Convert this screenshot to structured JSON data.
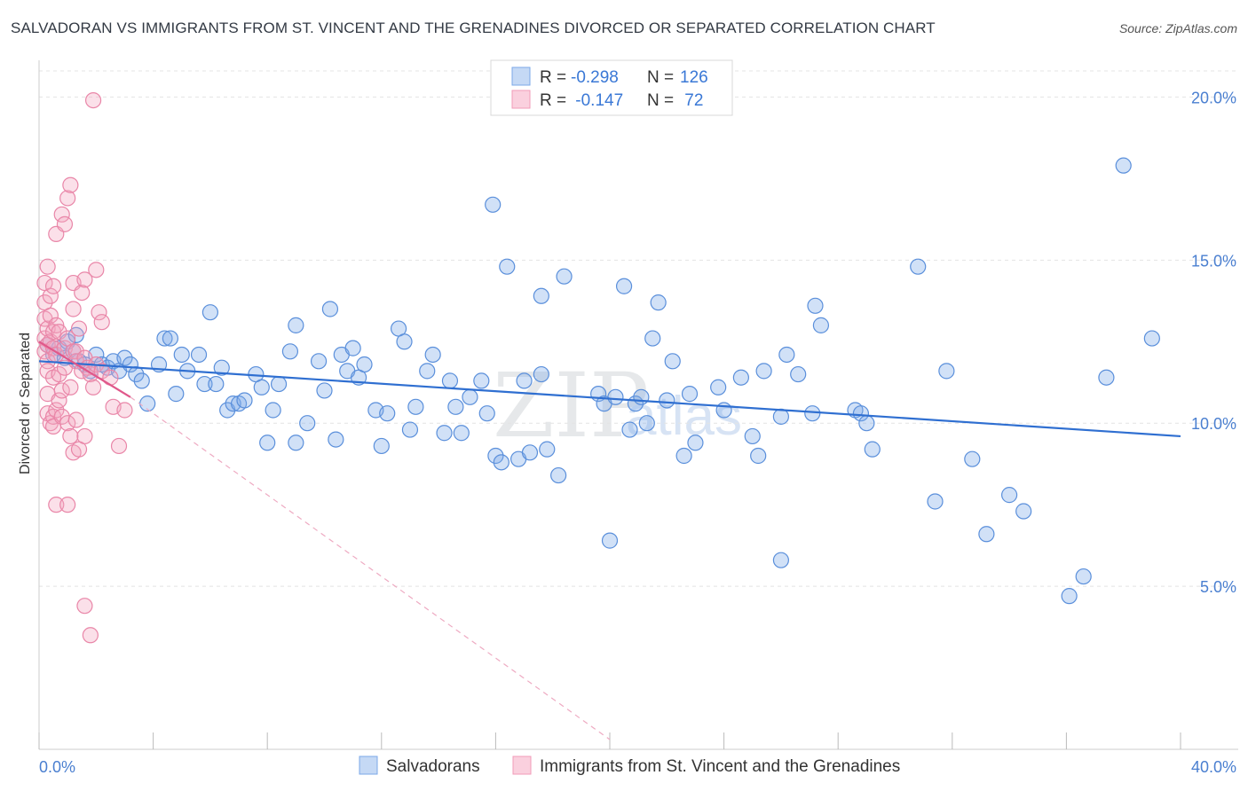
{
  "title": "SALVADORAN VS IMMIGRANTS FROM ST. VINCENT AND THE GRENADINES DIVORCED OR SEPARATED CORRELATION CHART",
  "source": "Source: ZipAtlas.com",
  "watermark": {
    "zip": "ZIP",
    "atlas": "atlas"
  },
  "stats_box": {
    "rows": [
      {
        "r_label": "R = ",
        "r_value": "-0.298",
        "n_label": "N = ",
        "n_value": "126",
        "color": "#7ba8e8"
      },
      {
        "r_label": "R = ",
        "r_value": " -0.147",
        "n_label": "N = ",
        "n_value": " 72",
        "color": "#f29bb8"
      }
    ]
  },
  "chart_data": {
    "type": "scatter",
    "title": "SALVADORAN VS IMMIGRANTS FROM ST. VINCENT AND THE GRENADINES DIVORCED OR SEPARATED CORRELATION CHART",
    "xlabel": "",
    "ylabel": "Divorced or Separated",
    "xlim": [
      0,
      40
    ],
    "ylim": [
      0,
      20.8
    ],
    "x_tick_labels": [
      "0.0%",
      "40.0%"
    ],
    "y_ticks": [
      5,
      10,
      15,
      20
    ],
    "y_tick_labels": [
      "5.0%",
      "10.0%",
      "15.0%",
      "20.0%"
    ],
    "grid": true,
    "legend_position": "bottom",
    "series": [
      {
        "name": "Salvadorans",
        "color": "#7ba8e8",
        "stroke": "#5a8fdb",
        "trend": {
          "x": [
            0,
            40
          ],
          "y": [
            11.9,
            9.6
          ]
        },
        "points": [
          [
            0.3,
            12.4
          ],
          [
            0.5,
            12.1
          ],
          [
            0.7,
            12.3
          ],
          [
            0.9,
            12.0
          ],
          [
            1.0,
            12.5
          ],
          [
            1.2,
            12.2
          ],
          [
            1.3,
            12.7
          ],
          [
            1.4,
            11.9
          ],
          [
            1.6,
            11.8
          ],
          [
            1.8,
            11.6
          ],
          [
            2.0,
            12.1
          ],
          [
            2.2,
            11.8
          ],
          [
            2.4,
            11.7
          ],
          [
            2.6,
            11.9
          ],
          [
            2.8,
            11.6
          ],
          [
            3.0,
            12.0
          ],
          [
            3.2,
            11.8
          ],
          [
            3.4,
            11.5
          ],
          [
            3.6,
            11.3
          ],
          [
            3.8,
            10.6
          ],
          [
            4.2,
            11.8
          ],
          [
            4.4,
            12.6
          ],
          [
            4.6,
            12.6
          ],
          [
            4.8,
            10.9
          ],
          [
            5.0,
            12.1
          ],
          [
            5.2,
            11.6
          ],
          [
            5.6,
            12.1
          ],
          [
            5.8,
            11.2
          ],
          [
            6.0,
            13.4
          ],
          [
            6.2,
            11.2
          ],
          [
            6.4,
            11.7
          ],
          [
            6.6,
            10.4
          ],
          [
            6.8,
            10.6
          ],
          [
            7.0,
            10.6
          ],
          [
            7.2,
            10.7
          ],
          [
            7.6,
            11.5
          ],
          [
            7.8,
            11.1
          ],
          [
            8.0,
            9.4
          ],
          [
            8.2,
            10.4
          ],
          [
            8.4,
            11.2
          ],
          [
            8.8,
            12.2
          ],
          [
            9.0,
            13.0
          ],
          [
            9.0,
            9.4
          ],
          [
            9.4,
            10.0
          ],
          [
            9.8,
            11.9
          ],
          [
            10.0,
            11.0
          ],
          [
            10.2,
            13.5
          ],
          [
            10.4,
            9.5
          ],
          [
            10.6,
            12.1
          ],
          [
            10.8,
            11.6
          ],
          [
            11.0,
            12.3
          ],
          [
            11.2,
            11.4
          ],
          [
            11.4,
            11.8
          ],
          [
            11.8,
            10.4
          ],
          [
            12.0,
            9.3
          ],
          [
            12.2,
            10.3
          ],
          [
            12.6,
            12.9
          ],
          [
            12.8,
            12.5
          ],
          [
            13.0,
            9.8
          ],
          [
            13.2,
            10.5
          ],
          [
            13.6,
            11.6
          ],
          [
            13.8,
            12.1
          ],
          [
            14.2,
            9.7
          ],
          [
            14.4,
            11.3
          ],
          [
            14.6,
            10.5
          ],
          [
            14.8,
            9.7
          ],
          [
            15.1,
            10.8
          ],
          [
            15.5,
            11.3
          ],
          [
            15.7,
            10.3
          ],
          [
            15.9,
            16.7
          ],
          [
            16.0,
            9.0
          ],
          [
            16.2,
            8.8
          ],
          [
            16.4,
            14.8
          ],
          [
            16.8,
            8.9
          ],
          [
            17.0,
            11.3
          ],
          [
            17.2,
            9.1
          ],
          [
            17.6,
            11.5
          ],
          [
            17.6,
            13.9
          ],
          [
            17.8,
            9.2
          ],
          [
            18.2,
            8.4
          ],
          [
            18.4,
            14.5
          ],
          [
            19.6,
            10.9
          ],
          [
            19.8,
            10.6
          ],
          [
            20.0,
            6.4
          ],
          [
            20.2,
            10.8
          ],
          [
            20.5,
            14.2
          ],
          [
            20.7,
            9.8
          ],
          [
            20.9,
            10.6
          ],
          [
            21.1,
            10.8
          ],
          [
            21.3,
            10.0
          ],
          [
            21.5,
            12.6
          ],
          [
            21.7,
            13.7
          ],
          [
            22.0,
            10.7
          ],
          [
            22.2,
            11.9
          ],
          [
            22.6,
            9.0
          ],
          [
            22.8,
            10.9
          ],
          [
            23.0,
            9.4
          ],
          [
            23.8,
            11.1
          ],
          [
            24.0,
            10.4
          ],
          [
            24.6,
            11.4
          ],
          [
            25.0,
            9.6
          ],
          [
            25.2,
            9.0
          ],
          [
            25.4,
            11.6
          ],
          [
            26.0,
            10.2
          ],
          [
            26.0,
            5.8
          ],
          [
            26.2,
            12.1
          ],
          [
            26.6,
            11.5
          ],
          [
            27.1,
            10.3
          ],
          [
            27.2,
            13.6
          ],
          [
            27.4,
            13.0
          ],
          [
            28.6,
            10.4
          ],
          [
            28.8,
            10.3
          ],
          [
            29.0,
            10.0
          ],
          [
            29.2,
            9.2
          ],
          [
            30.8,
            14.8
          ],
          [
            31.4,
            7.6
          ],
          [
            31.8,
            11.6
          ],
          [
            32.7,
            8.9
          ],
          [
            33.2,
            6.6
          ],
          [
            34.0,
            7.8
          ],
          [
            34.5,
            7.3
          ],
          [
            36.1,
            4.7
          ],
          [
            36.6,
            5.3
          ],
          [
            37.4,
            11.4
          ],
          [
            38.0,
            17.9
          ],
          [
            39.0,
            12.6
          ]
        ]
      },
      {
        "name": "Immigrants from St. Vincent and the Grenadines",
        "color": "#f4a7c0",
        "stroke": "#e986a8",
        "trend": {
          "x": [
            0,
            3.2
          ],
          "y": [
            12.5,
            10.8
          ]
        },
        "trend_extension": {
          "x": [
            3.2,
            20.0
          ],
          "y": [
            10.8,
            0.3
          ]
        },
        "points": [
          [
            0.2,
            14.3
          ],
          [
            0.2,
            13.7
          ],
          [
            0.2,
            13.2
          ],
          [
            0.2,
            12.6
          ],
          [
            0.2,
            12.2
          ],
          [
            0.3,
            14.8
          ],
          [
            0.3,
            12.9
          ],
          [
            0.3,
            12.4
          ],
          [
            0.3,
            11.9
          ],
          [
            0.3,
            11.6
          ],
          [
            0.3,
            10.9
          ],
          [
            0.3,
            10.3
          ],
          [
            0.4,
            13.9
          ],
          [
            0.4,
            13.3
          ],
          [
            0.4,
            12.5
          ],
          [
            0.4,
            10.0
          ],
          [
            0.5,
            14.2
          ],
          [
            0.5,
            12.8
          ],
          [
            0.5,
            12.3
          ],
          [
            0.5,
            11.4
          ],
          [
            0.5,
            10.2
          ],
          [
            0.5,
            9.9
          ],
          [
            0.6,
            15.8
          ],
          [
            0.6,
            13.0
          ],
          [
            0.6,
            12.1
          ],
          [
            0.6,
            10.4
          ],
          [
            0.6,
            7.5
          ],
          [
            0.7,
            12.8
          ],
          [
            0.7,
            11.5
          ],
          [
            0.7,
            10.7
          ],
          [
            0.8,
            16.4
          ],
          [
            0.8,
            11.0
          ],
          [
            0.8,
            10.2
          ],
          [
            0.9,
            16.1
          ],
          [
            0.9,
            12.3
          ],
          [
            0.9,
            11.7
          ],
          [
            1.0,
            16.9
          ],
          [
            1.0,
            12.6
          ],
          [
            1.0,
            10.0
          ],
          [
            1.0,
            7.5
          ],
          [
            1.1,
            17.3
          ],
          [
            1.1,
            11.1
          ],
          [
            1.1,
            9.6
          ],
          [
            1.2,
            14.3
          ],
          [
            1.2,
            13.5
          ],
          [
            1.2,
            12.2
          ],
          [
            1.2,
            9.1
          ],
          [
            1.3,
            12.2
          ],
          [
            1.3,
            11.9
          ],
          [
            1.3,
            10.1
          ],
          [
            1.4,
            12.9
          ],
          [
            1.4,
            9.2
          ],
          [
            1.5,
            14.0
          ],
          [
            1.5,
            11.6
          ],
          [
            1.6,
            14.4
          ],
          [
            1.6,
            12.0
          ],
          [
            1.6,
            9.6
          ],
          [
            1.6,
            4.4
          ],
          [
            1.7,
            11.7
          ],
          [
            1.8,
            11.5
          ],
          [
            1.8,
            3.5
          ],
          [
            1.9,
            11.1
          ],
          [
            1.9,
            19.9
          ],
          [
            2.0,
            14.7
          ],
          [
            2.0,
            11.8
          ],
          [
            2.1,
            13.4
          ],
          [
            2.2,
            13.1
          ],
          [
            2.2,
            11.6
          ],
          [
            2.5,
            11.4
          ],
          [
            2.6,
            10.5
          ],
          [
            2.8,
            9.3
          ],
          [
            3.0,
            10.4
          ]
        ]
      }
    ]
  },
  "legend": {
    "items": [
      {
        "label": "Salvadorans",
        "color": "#7ba8e8"
      },
      {
        "label": "Immigrants from St. Vincent and the Grenadines",
        "color": "#f4a7c0"
      }
    ]
  }
}
